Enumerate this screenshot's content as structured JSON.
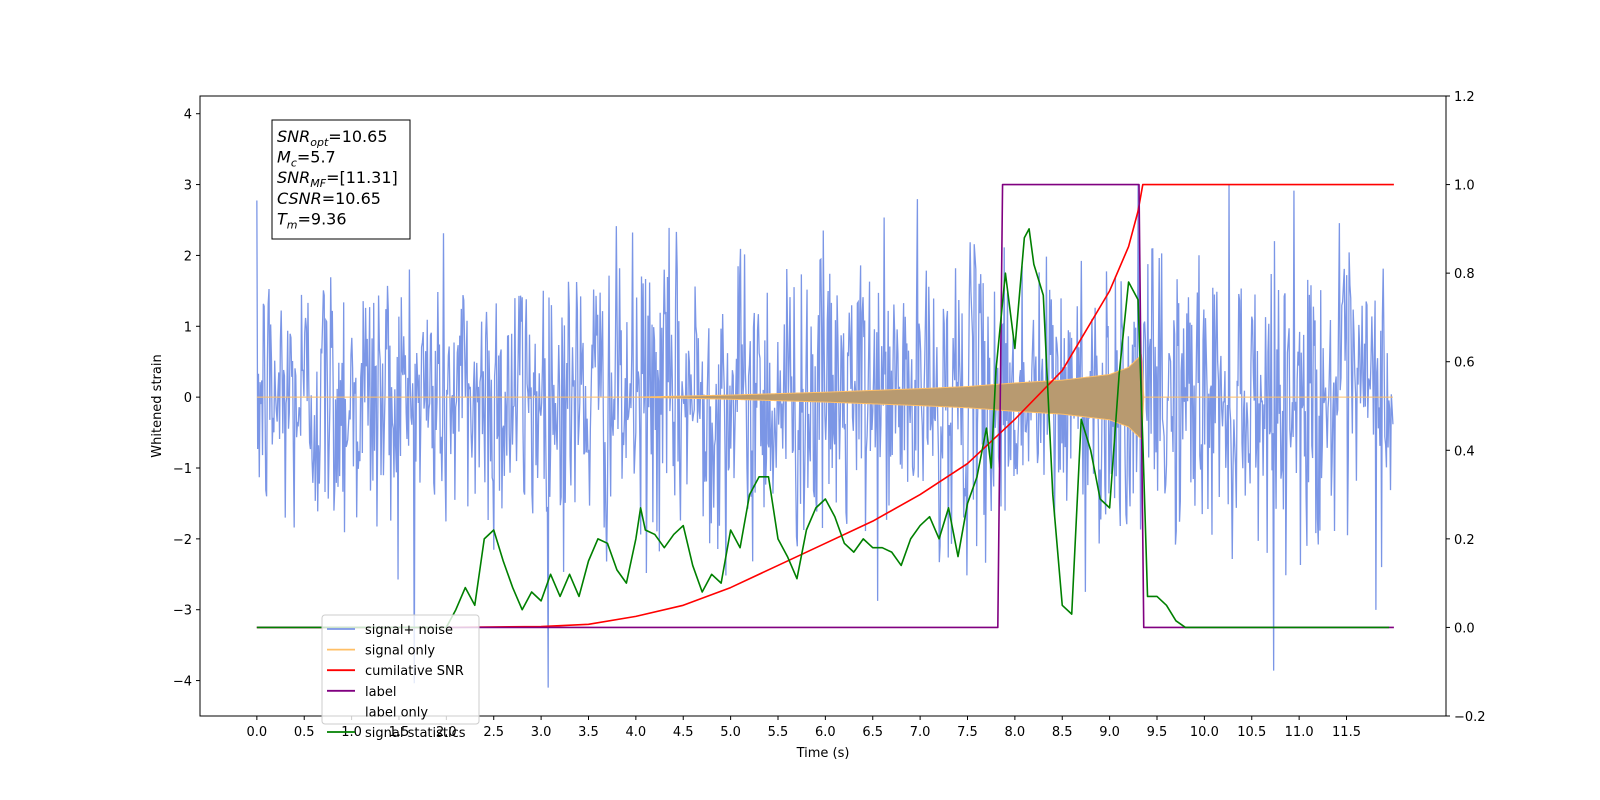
{
  "chart_data": {
    "type": "line",
    "title": "",
    "xlabel": "Time (s)",
    "ylabel": "Whitened strain",
    "xlim": [
      -0.6,
      12.55
    ],
    "ylim": [
      -4.5,
      4.25
    ],
    "y2lim": [
      -0.2,
      1.2
    ],
    "x_ticks": [
      0.0,
      0.5,
      1.0,
      1.5,
      2.0,
      2.5,
      3.0,
      3.5,
      4.0,
      4.5,
      5.0,
      5.5,
      6.0,
      6.5,
      7.0,
      7.5,
      8.0,
      8.5,
      9.0,
      9.5,
      10.0,
      10.5,
      11.0,
      11.5
    ],
    "x_tick_labels": [
      "0.0",
      "0.5",
      "1.0",
      "1.5",
      "2.0",
      "2.5",
      "3.0",
      "3.5",
      "4.0",
      "4.5",
      "5.0",
      "5.5",
      "6.0",
      "6.5",
      "7.0",
      "7.5",
      "8.0",
      "8.5",
      "9.0",
      "9.5",
      "10.0",
      "10.5",
      "11.0",
      "11.5"
    ],
    "y_ticks": [
      -4,
      -3,
      -2,
      -1,
      0,
      1,
      2,
      3,
      4
    ],
    "y_tick_labels": [
      "−4",
      "−3",
      "−2",
      "−1",
      "0",
      "1",
      "2",
      "3",
      "4"
    ],
    "y2_ticks": [
      -0.2,
      0.0,
      0.2,
      0.4,
      0.6,
      0.8,
      1.0,
      1.2
    ],
    "y2_tick_labels": [
      "−0.2",
      "0.0",
      "0.2",
      "0.4",
      "0.6",
      "0.8",
      "1.0",
      "1.2"
    ],
    "legend_position": "lower-left",
    "grid": false,
    "annotation": [
      {
        "name": "SNR",
        "sub": "opt",
        "value": "=10.65"
      },
      {
        "name": "M",
        "sub": "c",
        "value": "=5.7"
      },
      {
        "name": "SNR",
        "sub": "MF",
        "value": "=[11.31]"
      },
      {
        "name": "CSNR",
        "sub": "",
        "value": "=10.65"
      },
      {
        "name": "T",
        "sub": "m",
        "value": "=9.36"
      }
    ],
    "series": [
      {
        "name": "signal+ noise",
        "color": "#7b96e6",
        "axis": "left",
        "style": "noise",
        "x_range": [
          0.0,
          11.99
        ],
        "sigma": 1.0,
        "samples": 1400
      },
      {
        "name": "signal only",
        "color": "#ffbf66",
        "axis": "left",
        "style": "chirp",
        "x_range": [
          0.0,
          11.99
        ],
        "envelope": [
          [
            0.0,
            0.0
          ],
          [
            4.0,
            0.0
          ],
          [
            5.0,
            0.03
          ],
          [
            6.0,
            0.07
          ],
          [
            7.0,
            0.12
          ],
          [
            7.5,
            0.15
          ],
          [
            8.0,
            0.2
          ],
          [
            8.5,
            0.24
          ],
          [
            9.0,
            0.32
          ],
          [
            9.2,
            0.42
          ],
          [
            9.3,
            0.55
          ],
          [
            9.34,
            0.6
          ],
          [
            9.36,
            0.0
          ],
          [
            11.99,
            0.0
          ]
        ]
      },
      {
        "name": "cumilative SNR",
        "color": "#ff0000",
        "axis": "right",
        "x": [
          0.0,
          2.0,
          3.0,
          3.5,
          4.0,
          4.5,
          5.0,
          5.5,
          6.0,
          6.5,
          7.0,
          7.5,
          8.0,
          8.5,
          9.0,
          9.2,
          9.3,
          9.35,
          9.4,
          12.0
        ],
        "y": [
          0.0,
          0.0,
          0.002,
          0.007,
          0.025,
          0.05,
          0.09,
          0.14,
          0.19,
          0.24,
          0.3,
          0.37,
          0.47,
          0.58,
          0.76,
          0.86,
          0.94,
          1.0,
          1.0,
          1.0
        ]
      },
      {
        "name": "label",
        "color": "#800080",
        "axis": "right",
        "x": [
          0.0,
          7.82,
          7.87,
          9.31,
          9.36,
          12.0
        ],
        "y": [
          0.0,
          0.0,
          1.0,
          1.0,
          0.0,
          0.0
        ]
      },
      {
        "name": "label only",
        "color": "#ffffff",
        "axis": "right",
        "x": [],
        "y": []
      },
      {
        "name": "signal statistics",
        "color": "#008000",
        "axis": "right",
        "x": [
          0.0,
          1.5,
          2.0,
          2.1,
          2.2,
          2.3,
          2.4,
          2.5,
          2.6,
          2.7,
          2.8,
          2.9,
          3.0,
          3.1,
          3.2,
          3.3,
          3.4,
          3.5,
          3.6,
          3.7,
          3.8,
          3.9,
          4.0,
          4.05,
          4.1,
          4.2,
          4.3,
          4.4,
          4.5,
          4.6,
          4.7,
          4.8,
          4.9,
          5.0,
          5.1,
          5.2,
          5.3,
          5.4,
          5.5,
          5.6,
          5.7,
          5.8,
          5.9,
          6.0,
          6.1,
          6.2,
          6.3,
          6.4,
          6.5,
          6.6,
          6.7,
          6.8,
          6.9,
          7.0,
          7.1,
          7.2,
          7.3,
          7.4,
          7.5,
          7.6,
          7.7,
          7.75,
          7.8,
          7.9,
          8.0,
          8.1,
          8.15,
          8.2,
          8.3,
          8.4,
          8.5,
          8.6,
          8.7,
          8.8,
          8.9,
          9.0,
          9.1,
          9.2,
          9.3,
          9.35,
          9.4,
          9.5,
          9.6,
          9.7,
          9.8,
          10.0,
          11.0,
          11.95
        ],
        "y": [
          0.0,
          0.0,
          0.0,
          0.04,
          0.09,
          0.05,
          0.2,
          0.22,
          0.15,
          0.09,
          0.04,
          0.08,
          0.06,
          0.12,
          0.07,
          0.12,
          0.07,
          0.15,
          0.2,
          0.19,
          0.13,
          0.1,
          0.2,
          0.27,
          0.22,
          0.21,
          0.18,
          0.21,
          0.23,
          0.14,
          0.08,
          0.12,
          0.1,
          0.22,
          0.18,
          0.3,
          0.34,
          0.34,
          0.2,
          0.16,
          0.11,
          0.22,
          0.27,
          0.29,
          0.25,
          0.19,
          0.17,
          0.2,
          0.18,
          0.18,
          0.17,
          0.14,
          0.2,
          0.23,
          0.25,
          0.2,
          0.27,
          0.16,
          0.28,
          0.34,
          0.45,
          0.36,
          0.58,
          0.8,
          0.63,
          0.88,
          0.9,
          0.82,
          0.75,
          0.3,
          0.05,
          0.03,
          0.47,
          0.4,
          0.29,
          0.27,
          0.57,
          0.78,
          0.74,
          0.42,
          0.07,
          0.07,
          0.05,
          0.015,
          0.0,
          0.0,
          0.0,
          0.0
        ]
      }
    ]
  }
}
